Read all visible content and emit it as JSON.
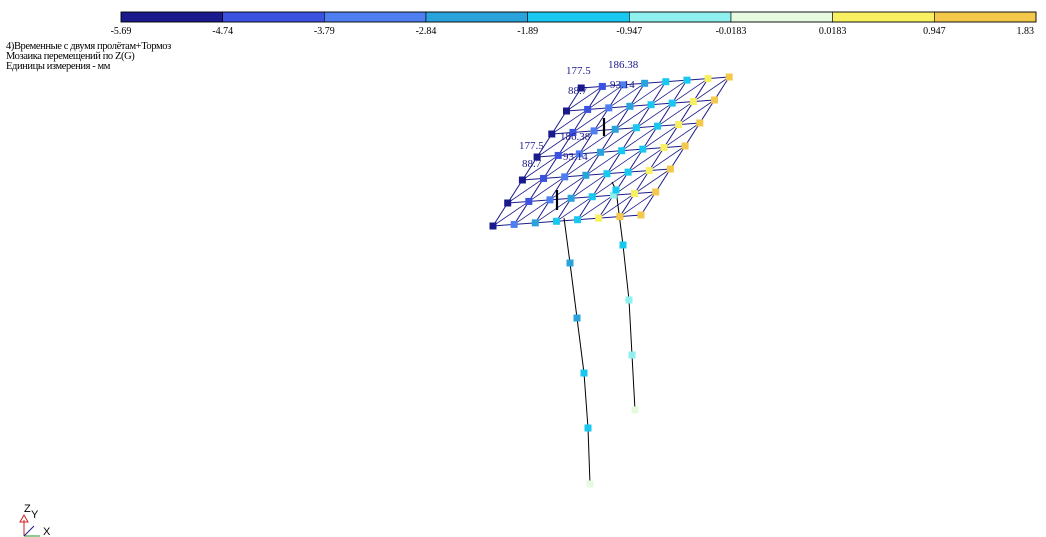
{
  "info": {
    "line1": "4)Временные с двумя пролётам+Тормоз",
    "line2": "Мозаика перемещений по Z(G)",
    "line3": "Единицы измерения - мм"
  },
  "color_scale": {
    "ticks": [
      "-5.69",
      "-4.74",
      "-3.79",
      "-2.84",
      "-1.89",
      "-0.947",
      "-0.0183",
      "0.0183",
      "0.947",
      "1.83"
    ],
    "colors": [
      "#1a1a8c",
      "#3b52e0",
      "#4f7ef0",
      "#2aa3dc",
      "#19c8f0",
      "#8ff0f0",
      "#e6fae0",
      "#f8f060",
      "#f4c84a"
    ]
  },
  "dimensions": {
    "d1": "177.5",
    "d2": "186.38",
    "d3": "88.7",
    "d4": "93.14",
    "d5": "177.5",
    "d6": "88.7",
    "d7": "93.14",
    "d8": "186.38"
  },
  "axes": {
    "z": "Z",
    "y": "Y",
    "x": "X"
  }
}
